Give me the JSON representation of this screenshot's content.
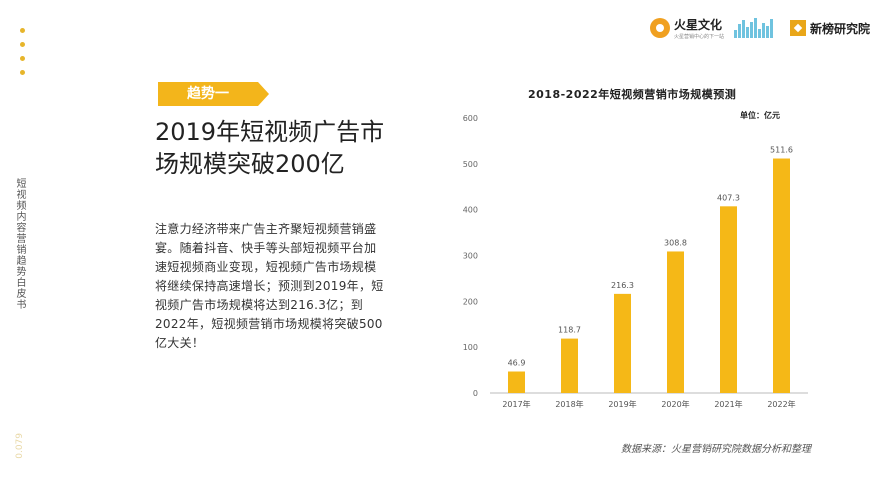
{
  "sidebar": {
    "title": "短视频内容营销趋势白皮书",
    "page_number": "0.079"
  },
  "logos": {
    "logo1": {
      "name": "火星文化",
      "tagline": "火星营销中心的下一站"
    },
    "logo3": {
      "name": "新榜研究院"
    }
  },
  "trend": {
    "label": "趋势一"
  },
  "headline": [
    "2019年短视频广告市",
    "场规模突破200亿"
  ],
  "body": [
    "注意力经济带来广告主齐聚短视频营销盛",
    "宴。随着抖音、快手等头部短视频平台加",
    "速短视频商业变现，短视频广告市场规模",
    "将继续保持高速增长；预测到2019年，短",
    "视频广告市场规模将达到216.3亿；到",
    "2022年，短视频营销市场规模将突破500",
    "亿大关！"
  ],
  "source": "数据来源：火星营销研究院数据分析和整理",
  "colors": {
    "accent": "#f5b817",
    "tag": "#f3b51b"
  },
  "chart_data": {
    "type": "bar",
    "title": "2018-2022年短视频营销市场规模预测",
    "unit": "单位：亿元",
    "categories": [
      "2017年",
      "2018年",
      "2019年",
      "2020年",
      "2021年",
      "2022年"
    ],
    "values": [
      46.9,
      118.7,
      216.3,
      308.8,
      407.3,
      511.6
    ],
    "value_labels": [
      "46.9",
      "118.7",
      "216.3",
      "308.8",
      "407.3",
      "511.6"
    ],
    "yticks": [
      "0",
      "100",
      "200",
      "300",
      "400",
      "500",
      "600"
    ],
    "ylim": [
      0,
      600
    ],
    "grid": false
  }
}
